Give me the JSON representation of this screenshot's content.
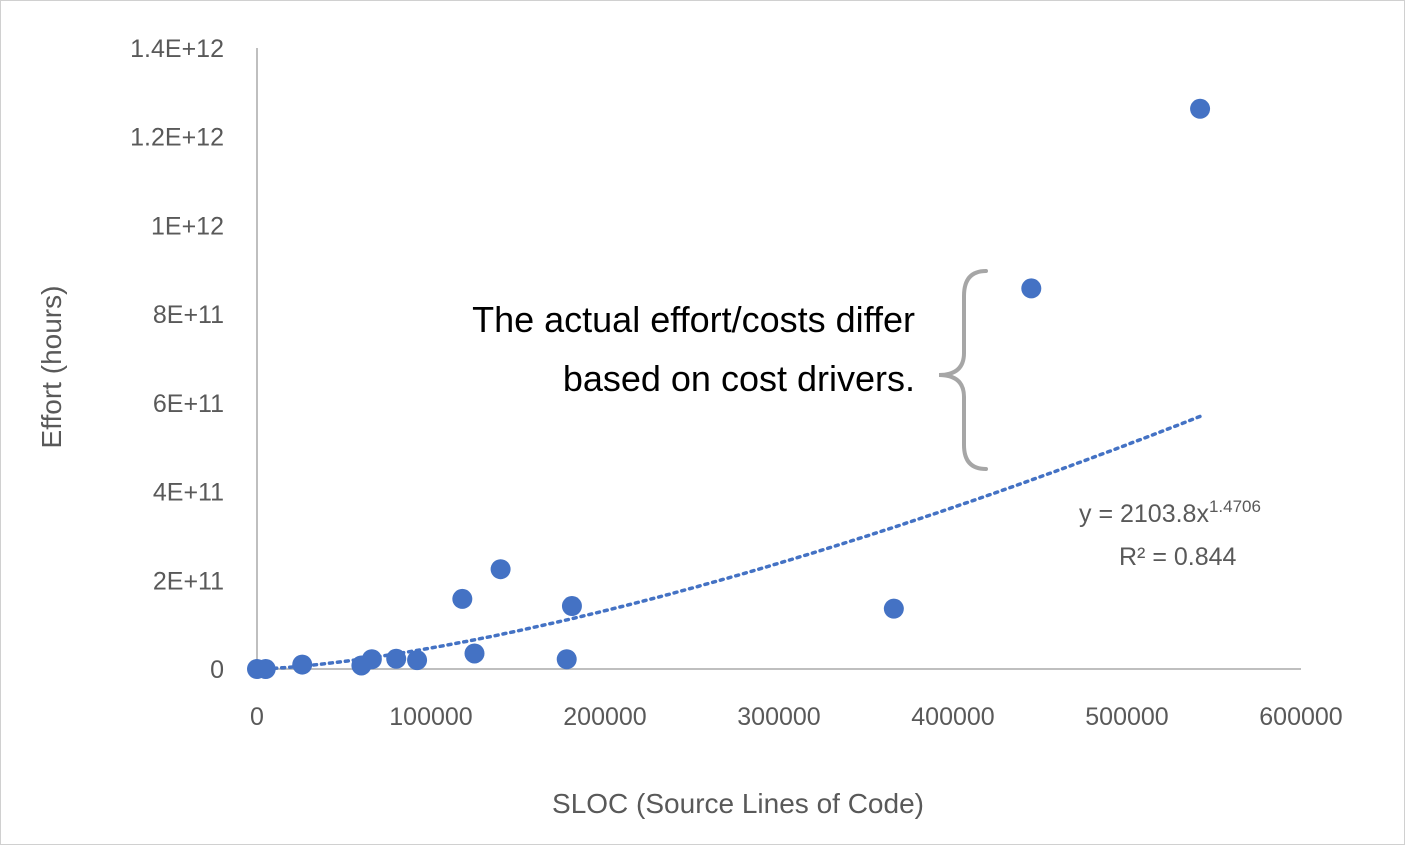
{
  "chart_data": {
    "type": "scatter",
    "title": "",
    "xlabel": "SLOC (Source Lines of Code)",
    "ylabel": "Effort  (hours)",
    "xlim": [
      0,
      600000
    ],
    "ylim": [
      0,
      1400000000000
    ],
    "x_ticks": [
      0,
      100000,
      200000,
      300000,
      400000,
      500000,
      600000
    ],
    "x_tick_labels": [
      "0",
      "100000",
      "200000",
      "300000",
      "400000",
      "500000",
      "600000"
    ],
    "y_ticks": [
      0,
      200000000000,
      400000000000,
      600000000000,
      800000000000,
      1000000000000,
      1200000000000,
      1400000000000
    ],
    "y_tick_labels": [
      "0",
      "2E+11",
      "4E+11",
      "6E+11",
      "8E+11",
      "1E+12",
      "1.2E+12",
      "1.4E+12"
    ],
    "grid": false,
    "legend": "none",
    "marker_color": "#4472C4",
    "points": [
      {
        "x": 0,
        "y": 0
      },
      {
        "x": 5000,
        "y": 0
      },
      {
        "x": 26000,
        "y": 10000000000
      },
      {
        "x": 60000,
        "y": 8000000000
      },
      {
        "x": 66000,
        "y": 22000000000
      },
      {
        "x": 80000,
        "y": 23000000000
      },
      {
        "x": 92000,
        "y": 20000000000
      },
      {
        "x": 118000,
        "y": 158000000000
      },
      {
        "x": 125000,
        "y": 35000000000
      },
      {
        "x": 140000,
        "y": 225000000000
      },
      {
        "x": 178000,
        "y": 22000000000
      },
      {
        "x": 181000,
        "y": 142000000000
      },
      {
        "x": 366000,
        "y": 136000000000
      },
      {
        "x": 445000,
        "y": 858000000000
      },
      {
        "x": 542000,
        "y": 1263000000000
      }
    ],
    "trendline": {
      "type": "power",
      "coefficient": 2103.8,
      "exponent": 1.4706,
      "x_range": [
        5000,
        542000
      ],
      "style": "dotted",
      "color": "#4472C4",
      "equation_prefix": "y = 2103.8x",
      "equation_exponent": "1.4706",
      "r_squared": "R² = 0.844"
    },
    "annotation": {
      "lines": [
        "The actual effort/costs differ",
        "based on cost drivers."
      ],
      "brace_color": "#A6A6A6"
    }
  }
}
